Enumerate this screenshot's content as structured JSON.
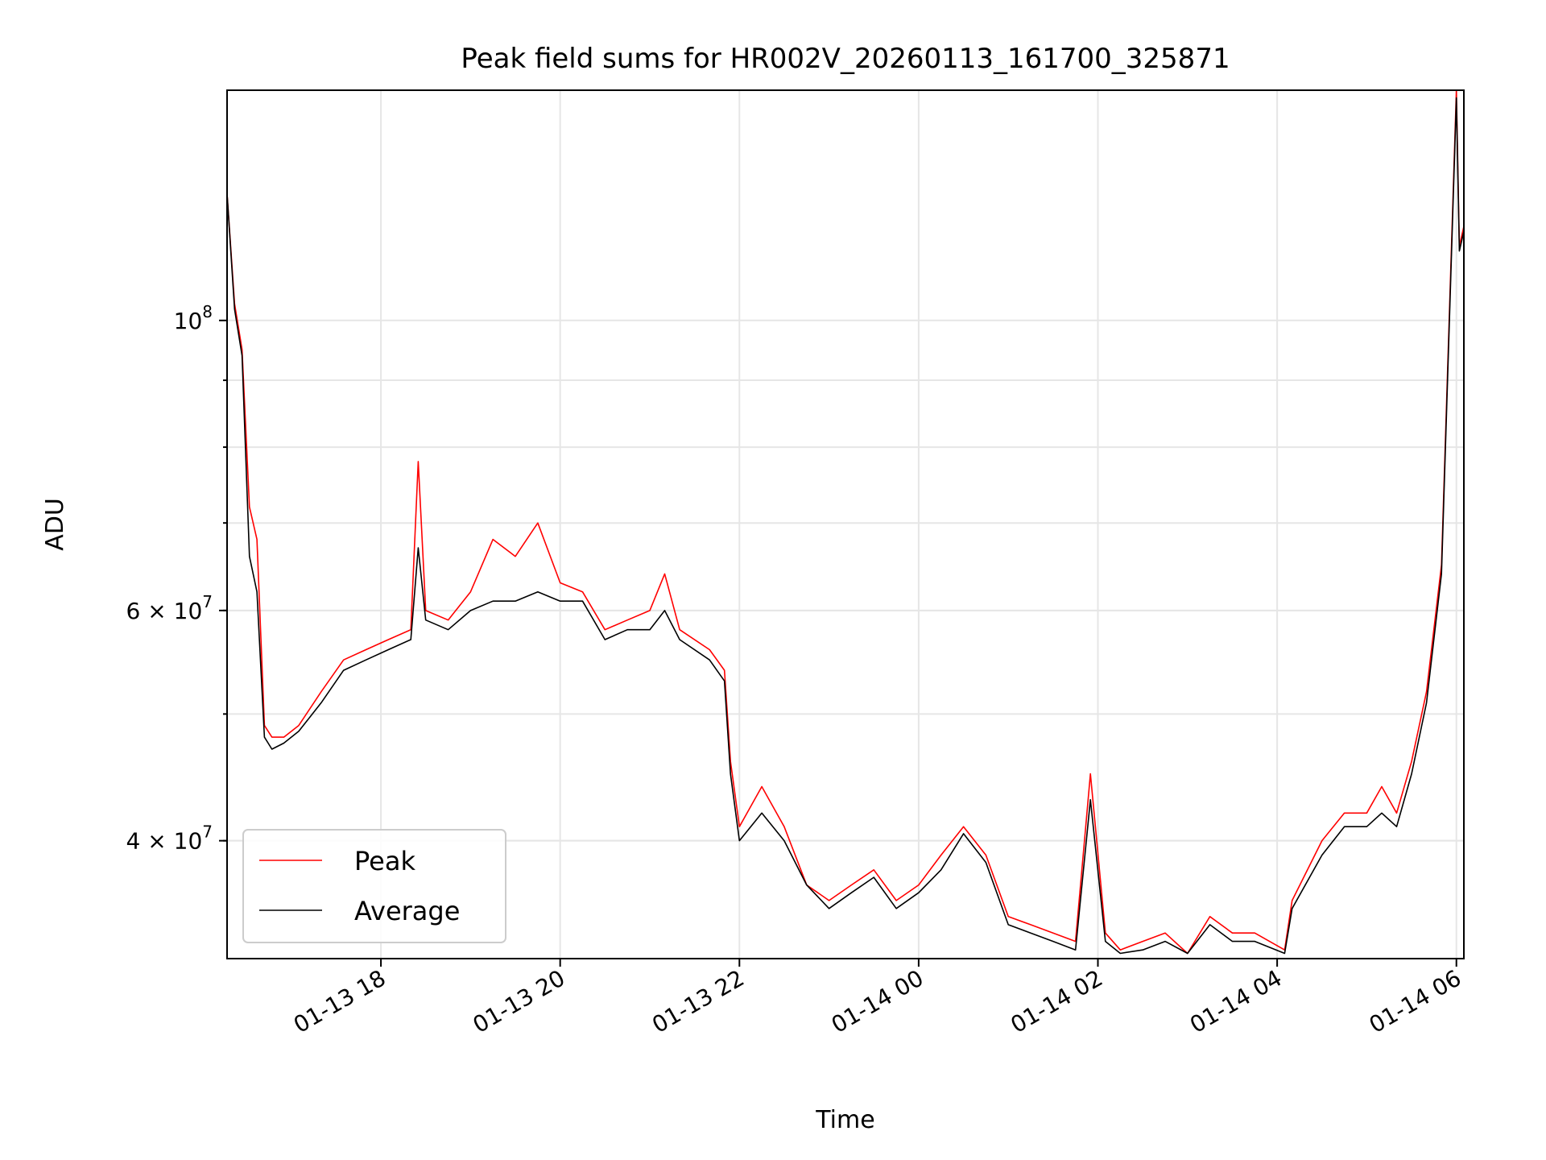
{
  "chart_data": {
    "type": "line",
    "title": "Peak field sums for HR002V_20260113_161700_325871",
    "xlabel": "Time",
    "ylabel": "ADU",
    "yscale": "log",
    "grid": true,
    "legend_position": "lower-left",
    "xlim": [
      "2026-01-13 16:17",
      "2026-01-14 06:05"
    ],
    "ylim": [
      32500000,
      150000000
    ],
    "x_ticks": [
      {
        "time": "2026-01-13 18:00",
        "label": "01-13 18"
      },
      {
        "time": "2026-01-13 20:00",
        "label": "01-13 20"
      },
      {
        "time": "2026-01-13 22:00",
        "label": "01-13 22"
      },
      {
        "time": "2026-01-14 00:00",
        "label": "01-14 00"
      },
      {
        "time": "2026-01-14 02:00",
        "label": "01-14 02"
      },
      {
        "time": "2026-01-14 04:00",
        "label": "01-14 04"
      },
      {
        "time": "2026-01-14 06:00",
        "label": "01-14 06"
      }
    ],
    "y_major_ticks": [
      {
        "value": 100000000,
        "mantissa": "",
        "exponent": "8"
      },
      {
        "value": 60000000,
        "mantissa": "6",
        "exponent": "7"
      },
      {
        "value": 40000000,
        "mantissa": "4",
        "exponent": "7"
      }
    ],
    "y_minor_ticks": [
      40000000,
      50000000,
      60000000,
      70000000,
      80000000,
      90000000
    ],
    "colors": {
      "peak": "#ff0000",
      "average": "#000000"
    },
    "x": [
      "2026-01-13 16:17",
      "2026-01-13 16:22",
      "2026-01-13 16:27",
      "2026-01-13 16:32",
      "2026-01-13 16:37",
      "2026-01-13 16:42",
      "2026-01-13 16:47",
      "2026-01-13 16:55",
      "2026-01-13 17:05",
      "2026-01-13 17:20",
      "2026-01-13 17:35",
      "2026-01-13 17:50",
      "2026-01-13 18:05",
      "2026-01-13 18:20",
      "2026-01-13 18:25",
      "2026-01-13 18:30",
      "2026-01-13 18:45",
      "2026-01-13 19:00",
      "2026-01-13 19:15",
      "2026-01-13 19:30",
      "2026-01-13 19:45",
      "2026-01-13 20:00",
      "2026-01-13 20:15",
      "2026-01-13 20:30",
      "2026-01-13 20:45",
      "2026-01-13 21:00",
      "2026-01-13 21:10",
      "2026-01-13 21:20",
      "2026-01-13 21:40",
      "2026-01-13 21:50",
      "2026-01-13 21:54",
      "2026-01-13 22:00",
      "2026-01-13 22:15",
      "2026-01-13 22:30",
      "2026-01-13 22:45",
      "2026-01-13 23:00",
      "2026-01-13 23:15",
      "2026-01-13 23:30",
      "2026-01-13 23:45",
      "2026-01-14 00:00",
      "2026-01-14 00:15",
      "2026-01-14 00:30",
      "2026-01-14 00:45",
      "2026-01-14 01:00",
      "2026-01-14 01:15",
      "2026-01-14 01:30",
      "2026-01-14 01:45",
      "2026-01-14 01:55",
      "2026-01-14 02:05",
      "2026-01-14 02:15",
      "2026-01-14 02:30",
      "2026-01-14 02:45",
      "2026-01-14 03:00",
      "2026-01-14 03:15",
      "2026-01-14 03:30",
      "2026-01-14 03:45",
      "2026-01-14 04:05",
      "2026-01-14 04:10",
      "2026-01-14 04:30",
      "2026-01-14 04:45",
      "2026-01-14 05:00",
      "2026-01-14 05:10",
      "2026-01-14 05:20",
      "2026-01-14 05:30",
      "2026-01-14 05:40",
      "2026-01-14 05:50",
      "2026-01-14 06:00",
      "2026-01-14 06:02",
      "2026-01-14 06:05"
    ],
    "series": [
      {
        "name": "Peak",
        "values": [
          125000000,
          103000000,
          95000000,
          72000000,
          68000000,
          49000000,
          48000000,
          48000000,
          49000000,
          52000000,
          55000000,
          56000000,
          57000000,
          58000000,
          78000000,
          60000000,
          59000000,
          62000000,
          68000000,
          66000000,
          70000000,
          63000000,
          62000000,
          58000000,
          59000000,
          60000000,
          64000000,
          58000000,
          56000000,
          54000000,
          46000000,
          41000000,
          44000000,
          41000000,
          37000000,
          36000000,
          37000000,
          38000000,
          36000000,
          37000000,
          39000000,
          41000000,
          39000000,
          35000000,
          34500000,
          34000000,
          33500000,
          45000000,
          34000000,
          33000000,
          33500000,
          34000000,
          32800000,
          35000000,
          34000000,
          34000000,
          33000000,
          36000000,
          40000000,
          42000000,
          42000000,
          44000000,
          42000000,
          46000000,
          52000000,
          65000000,
          150000000,
          114000000,
          118000000
        ]
      },
      {
        "name": "Average",
        "values": [
          125000000,
          102000000,
          94000000,
          66000000,
          62000000,
          48000000,
          47000000,
          47500000,
          48500000,
          51000000,
          54000000,
          55000000,
          56000000,
          57000000,
          67000000,
          59000000,
          58000000,
          60000000,
          61000000,
          61000000,
          62000000,
          61000000,
          61000000,
          57000000,
          58000000,
          58000000,
          60000000,
          57000000,
          55000000,
          53000000,
          45000000,
          40000000,
          42000000,
          40000000,
          37000000,
          35500000,
          36500000,
          37500000,
          35500000,
          36500000,
          38000000,
          40500000,
          38500000,
          34500000,
          34000000,
          33500000,
          33000000,
          43000000,
          33500000,
          32800000,
          33000000,
          33500000,
          32800000,
          34500000,
          33500000,
          33500000,
          32800000,
          35500000,
          39000000,
          41000000,
          41000000,
          42000000,
          41000000,
          45000000,
          51000000,
          64000000,
          148000000,
          113000000,
          117000000
        ]
      }
    ]
  }
}
